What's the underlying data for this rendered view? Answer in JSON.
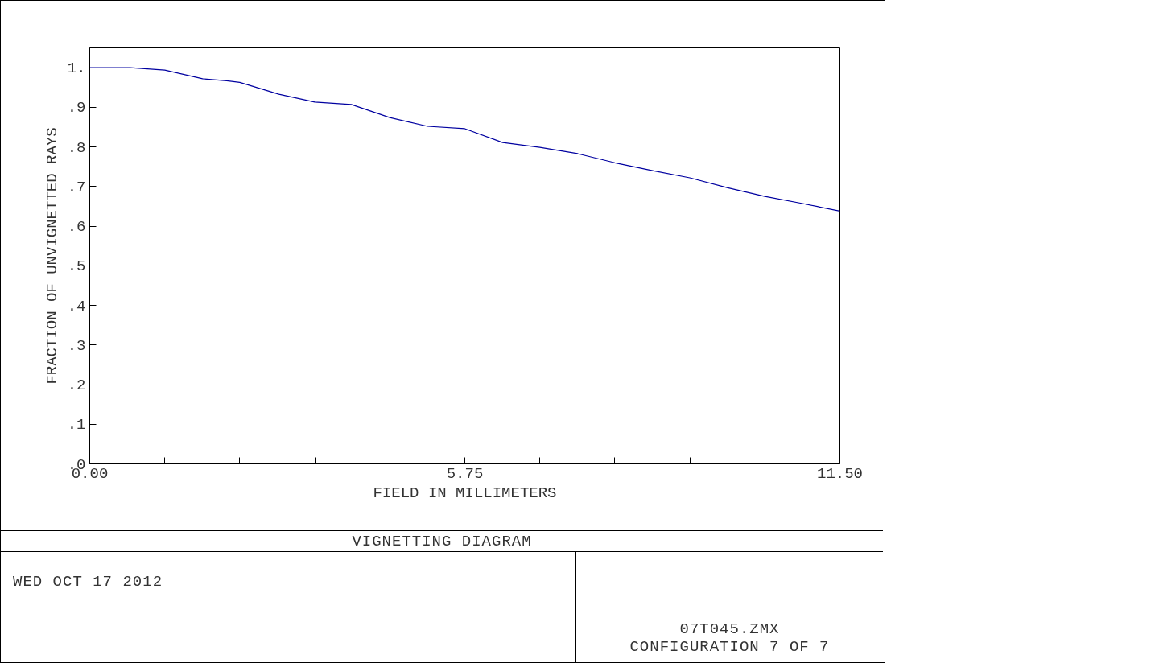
{
  "chart_data": {
    "type": "line",
    "title": "VIGNETTING DIAGRAM",
    "xlabel": "FIELD IN MILLIMETERS",
    "ylabel": "FRACTION OF UNVIGNETTED RAYS",
    "annotations": [
      "WED OCT 17 2012",
      "07T045.ZMX",
      "CONFIGURATION 7 OF 7"
    ],
    "x": [
      0,
      0.62,
      1.15,
      1.73,
      2.1,
      2.3,
      2.9,
      3.45,
      4.01,
      4.6,
      5.18,
      5.75,
      6.33,
      6.9,
      7.48,
      8.05,
      8.63,
      9.2,
      9.78,
      10.35,
      10.93,
      11.5
    ],
    "series": [
      {
        "color": "#0000a0",
        "values": [
          1.0,
          1.0,
          0.994,
          0.972,
          0.967,
          0.963,
          0.933,
          0.913,
          0.907,
          0.874,
          0.852,
          0.846,
          0.811,
          0.799,
          0.783,
          0.76,
          0.74,
          0.722,
          0.697,
          0.675,
          0.657,
          0.638
        ]
      }
    ],
    "xlim": [
      0,
      11.5
    ],
    "ylim": [
      0,
      1.05
    ],
    "xticks": [
      {
        "value": 0,
        "label": "0.00"
      },
      {
        "value": 1.15,
        "label": null
      },
      {
        "value": 2.3,
        "label": null
      },
      {
        "value": 3.45,
        "label": null
      },
      {
        "value": 4.6,
        "label": null
      },
      {
        "value": 5.75,
        "label": "5.75"
      },
      {
        "value": 6.9,
        "label": null
      },
      {
        "value": 8.05,
        "label": null
      },
      {
        "value": 9.2,
        "label": null
      },
      {
        "value": 10.35,
        "label": null
      },
      {
        "value": 11.5,
        "label": "11.50"
      }
    ],
    "yticks": [
      {
        "value": 0,
        "label": ".0"
      },
      {
        "value": 0.1,
        "label": ".1"
      },
      {
        "value": 0.2,
        "label": ".2"
      },
      {
        "value": 0.3,
        "label": ".3"
      },
      {
        "value": 0.4,
        "label": ".4"
      },
      {
        "value": 0.5,
        "label": ".5"
      },
      {
        "value": 0.6,
        "label": ".6"
      },
      {
        "value": 0.7,
        "label": ".7"
      },
      {
        "value": 0.8,
        "label": ".8"
      },
      {
        "value": 0.9,
        "label": ".9"
      },
      {
        "value": 1.0,
        "label": "1."
      }
    ],
    "grid": false,
    "line_style": "solid",
    "marker": "none"
  }
}
